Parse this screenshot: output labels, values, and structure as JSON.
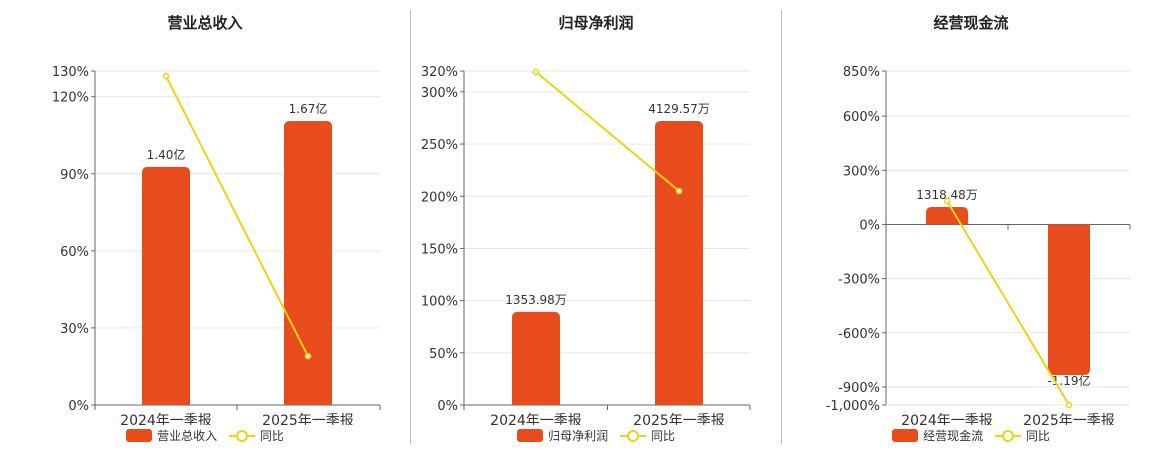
{
  "chart_data": [
    {
      "type": "bar",
      "title": "营业总收入",
      "categories": [
        "2024年一季报",
        "2025年一季报"
      ],
      "bar_series_name": "营业总收入",
      "line_series_name": "同比",
      "bar_values": [
        1.4,
        1.67
      ],
      "bar_unit": "亿",
      "bar_labels": [
        "1.40亿",
        "1.67亿"
      ],
      "line_values": [
        128,
        19
      ],
      "y_ticks": [
        "0%",
        "30%",
        "60%",
        "90%",
        "120%",
        "130%"
      ],
      "y_tick_values": [
        0,
        30,
        60,
        90,
        120,
        130
      ],
      "ylim": [
        0,
        130
      ]
    },
    {
      "type": "bar",
      "title": "归母净利润",
      "categories": [
        "2024年一季报",
        "2025年一季报"
      ],
      "bar_series_name": "归母净利润",
      "line_series_name": "同比",
      "bar_values": [
        1353.98,
        4129.57
      ],
      "bar_unit": "万",
      "bar_labels": [
        "1353.98万",
        "4129.57万"
      ],
      "line_values": [
        319,
        205
      ],
      "y_ticks": [
        "0%",
        "50%",
        "100%",
        "150%",
        "200%",
        "250%",
        "300%",
        "320%"
      ],
      "y_tick_values": [
        0,
        50,
        100,
        150,
        200,
        250,
        300,
        320
      ],
      "ylim": [
        0,
        320
      ]
    },
    {
      "type": "bar",
      "title": "经营现金流",
      "categories": [
        "2024年一季报",
        "2025年一季报"
      ],
      "bar_series_name": "经营现金流",
      "line_series_name": "同比",
      "bar_values": [
        1318.48,
        -11900
      ],
      "bar_unit": "万",
      "bar_labels": [
        "1318.48万",
        "-1.19亿"
      ],
      "line_values": [
        130,
        -1000
      ],
      "y_ticks": [
        "-1,000%",
        "-900%",
        "-600%",
        "-300%",
        "0%",
        "300%",
        "600%",
        "850%"
      ],
      "y_tick_values": [
        -1000,
        -900,
        -600,
        -300,
        0,
        300,
        600,
        850
      ],
      "ylim": [
        -1000,
        850
      ]
    }
  ],
  "colors": {
    "bar": "#e84c1c",
    "line": "#f0d215",
    "grid": "#e6e6e6",
    "axis": "#666666",
    "separator": "#bdbdbd"
  }
}
